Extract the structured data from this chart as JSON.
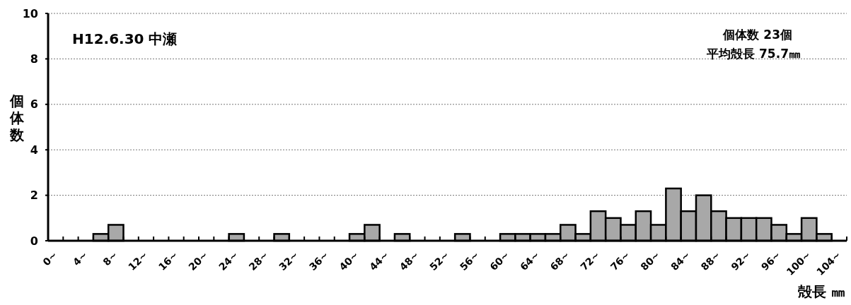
{
  "chart_data": {
    "type": "bar",
    "xlabel": "殻長 ㎜",
    "ylabel": "個体数",
    "annotations": [
      "H12.6.30 中瀬",
      "個体数 23個",
      "平均殻長 75.7㎜"
    ],
    "categories": [
      "0~",
      null,
      "4~",
      null,
      "8~",
      null,
      "12~",
      null,
      "16~",
      null,
      "20~",
      null,
      "24~",
      null,
      "28~",
      null,
      "32~",
      null,
      "36~",
      null,
      "40~",
      null,
      "44~",
      null,
      "48~",
      null,
      "52~",
      null,
      "56~",
      null,
      "60~",
      null,
      "64~",
      null,
      "68~",
      null,
      "72~",
      null,
      "76~",
      null,
      "80~",
      null,
      "84~",
      null,
      "88~",
      null,
      "92~",
      null,
      "96~",
      null,
      "100~",
      null,
      "104~"
    ],
    "values": [
      0,
      0,
      0,
      0.3,
      0.7,
      0,
      0,
      0,
      0,
      0,
      0,
      0,
      0.3,
      0,
      0,
      0.3,
      0,
      0,
      0,
      0,
      0.3,
      0.7,
      0,
      0.3,
      0,
      0,
      0,
      0.3,
      0,
      0,
      0.3,
      0.3,
      0.3,
      0.3,
      0.7,
      0.3,
      1.3,
      1.0,
      0.7,
      1.3,
      0.7,
      2.3,
      1.3,
      2.0,
      1.3,
      1.0,
      1.0,
      1.0,
      0.7,
      0.3,
      1.0,
      0.3,
      0
    ],
    "color": "#a8a8a8",
    "ylim": [
      0,
      10
    ],
    "yticks": [
      0,
      2,
      4,
      6,
      8,
      10
    ],
    "grid": "y"
  }
}
